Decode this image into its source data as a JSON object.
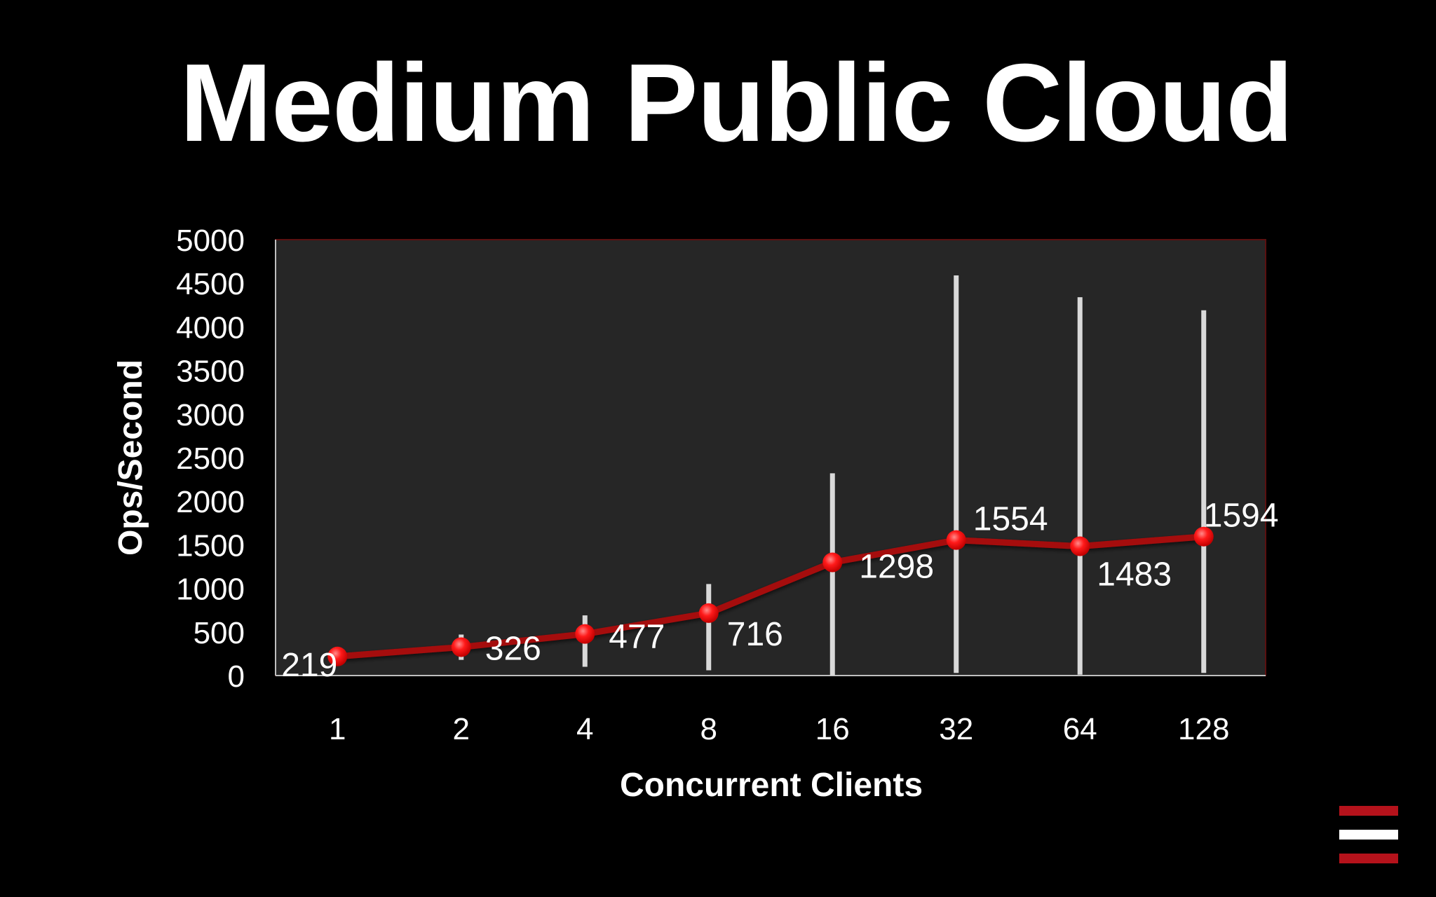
{
  "slide": {
    "title": "Medium Public Cloud"
  },
  "logo": {
    "name": "menu-stripes-logo",
    "colors": [
      "#b5121b",
      "#ffffff",
      "#b5121b"
    ]
  },
  "colors": {
    "background": "#000000",
    "plot_area": "#262626",
    "plot_border": "#5a1010",
    "series_line": "#a50b0b",
    "marker": "#e8141b",
    "error_bar": "#d9d9d9",
    "text": "#ffffff"
  },
  "chart_data": {
    "type": "line",
    "title": "",
    "xlabel": "Concurrent Clients",
    "ylabel": "Ops/Second",
    "categories": [
      "1",
      "2",
      "4",
      "8",
      "16",
      "32",
      "64",
      "128"
    ],
    "series": [
      {
        "values": [
          219,
          326,
          477,
          716,
          1298,
          1554,
          1483,
          1594
        ],
        "data_labels": [
          "219",
          "326",
          "477",
          "716",
          "1298",
          "1554",
          "1483",
          "1594"
        ],
        "error_bars": {
          "low": [
            219,
            180,
            100,
            60,
            0,
            30,
            10,
            30
          ],
          "high": [
            219,
            470,
            690,
            1050,
            2320,
            4590,
            4340,
            4190
          ]
        }
      }
    ],
    "ylim": [
      0,
      5000
    ],
    "yticks": [
      0,
      500,
      1000,
      1500,
      2000,
      2500,
      3000,
      3500,
      4000,
      4500,
      5000
    ],
    "grid": false,
    "legend": "none"
  }
}
